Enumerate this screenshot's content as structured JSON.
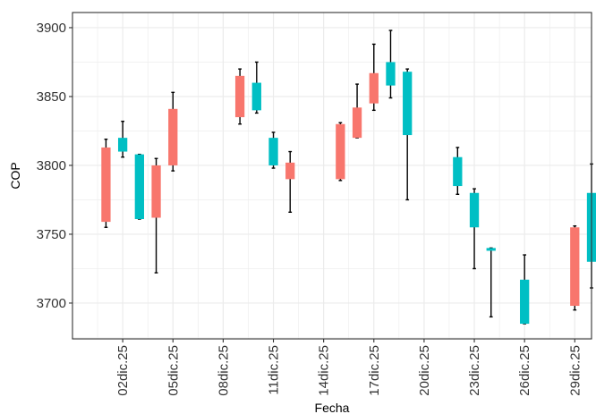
{
  "chart_data": {
    "type": "candlestick",
    "xlabel": "Fecha",
    "ylabel": "COP",
    "ylim": [
      3674,
      3911
    ],
    "yticks": [
      3700,
      3750,
      3800,
      3850,
      3900
    ],
    "xlim": [
      "2025-11-29",
      "2025-12-30"
    ],
    "xtick_labels": [
      "02dic.25",
      "05dic.25",
      "08dic.25",
      "11dic.25",
      "14dic.25",
      "17dic.25",
      "20dic.25",
      "23dic.25",
      "26dic.25",
      "29dic.25"
    ],
    "xticks": [
      "2025-12-02",
      "2025-12-05",
      "2025-12-08",
      "2025-12-11",
      "2025-12-14",
      "2025-12-17",
      "2025-12-20",
      "2025-12-23",
      "2025-12-26",
      "2025-12-29"
    ],
    "grid": true,
    "colors": {
      "up": "#00BFC4",
      "down": "#F8766D",
      "wick": "#000000",
      "grid": "#ebebeb",
      "border": "#333333"
    },
    "candles": [
      {
        "date": "2025-12-01",
        "open": 3813,
        "high": 3819,
        "low": 3755,
        "close": 3759
      },
      {
        "date": "2025-12-02",
        "open": 3810,
        "high": 3832,
        "low": 3806,
        "close": 3820
      },
      {
        "date": "2025-12-03",
        "open": 3761,
        "high": 3808,
        "low": 3761,
        "close": 3808
      },
      {
        "date": "2025-12-04",
        "open": 3800,
        "high": 3805,
        "low": 3722,
        "close": 3762
      },
      {
        "date": "2025-12-05",
        "open": 3841,
        "high": 3853,
        "low": 3796,
        "close": 3800
      },
      {
        "date": "2025-12-09",
        "open": 3865,
        "high": 3870,
        "low": 3830,
        "close": 3835
      },
      {
        "date": "2025-12-10",
        "open": 3840,
        "high": 3875,
        "low": 3838,
        "close": 3860
      },
      {
        "date": "2025-12-11",
        "open": 3800,
        "high": 3824,
        "low": 3798,
        "close": 3820
      },
      {
        "date": "2025-12-12",
        "open": 3802,
        "high": 3810,
        "low": 3766,
        "close": 3790
      },
      {
        "date": "2025-12-15",
        "open": 3830,
        "high": 3831,
        "low": 3789,
        "close": 3790
      },
      {
        "date": "2025-12-16",
        "open": 3842,
        "high": 3859,
        "low": 3820,
        "close": 3820
      },
      {
        "date": "2025-12-17",
        "open": 3867,
        "high": 3888,
        "low": 3840,
        "close": 3845
      },
      {
        "date": "2025-12-18",
        "open": 3858,
        "high": 3898,
        "low": 3849,
        "close": 3875
      },
      {
        "date": "2025-12-19",
        "open": 3822,
        "high": 3870,
        "low": 3775,
        "close": 3868
      },
      {
        "date": "2025-12-22",
        "open": 3785,
        "high": 3813,
        "low": 3779,
        "close": 3806
      },
      {
        "date": "2025-12-23",
        "open": 3755,
        "high": 3783,
        "low": 3725,
        "close": 3780
      },
      {
        "date": "2025-12-24",
        "open": 3738,
        "high": 3740,
        "low": 3690,
        "close": 3740
      },
      {
        "date": "2025-12-26",
        "open": 3685,
        "high": 3735,
        "low": 3685,
        "close": 3717
      },
      {
        "date": "2025-12-29",
        "open": 3755,
        "high": 3756,
        "low": 3695,
        "close": 3698
      },
      {
        "date": "2025-12-30",
        "open": 3730,
        "high": 3801,
        "low": 3711,
        "close": 3780
      }
    ]
  }
}
